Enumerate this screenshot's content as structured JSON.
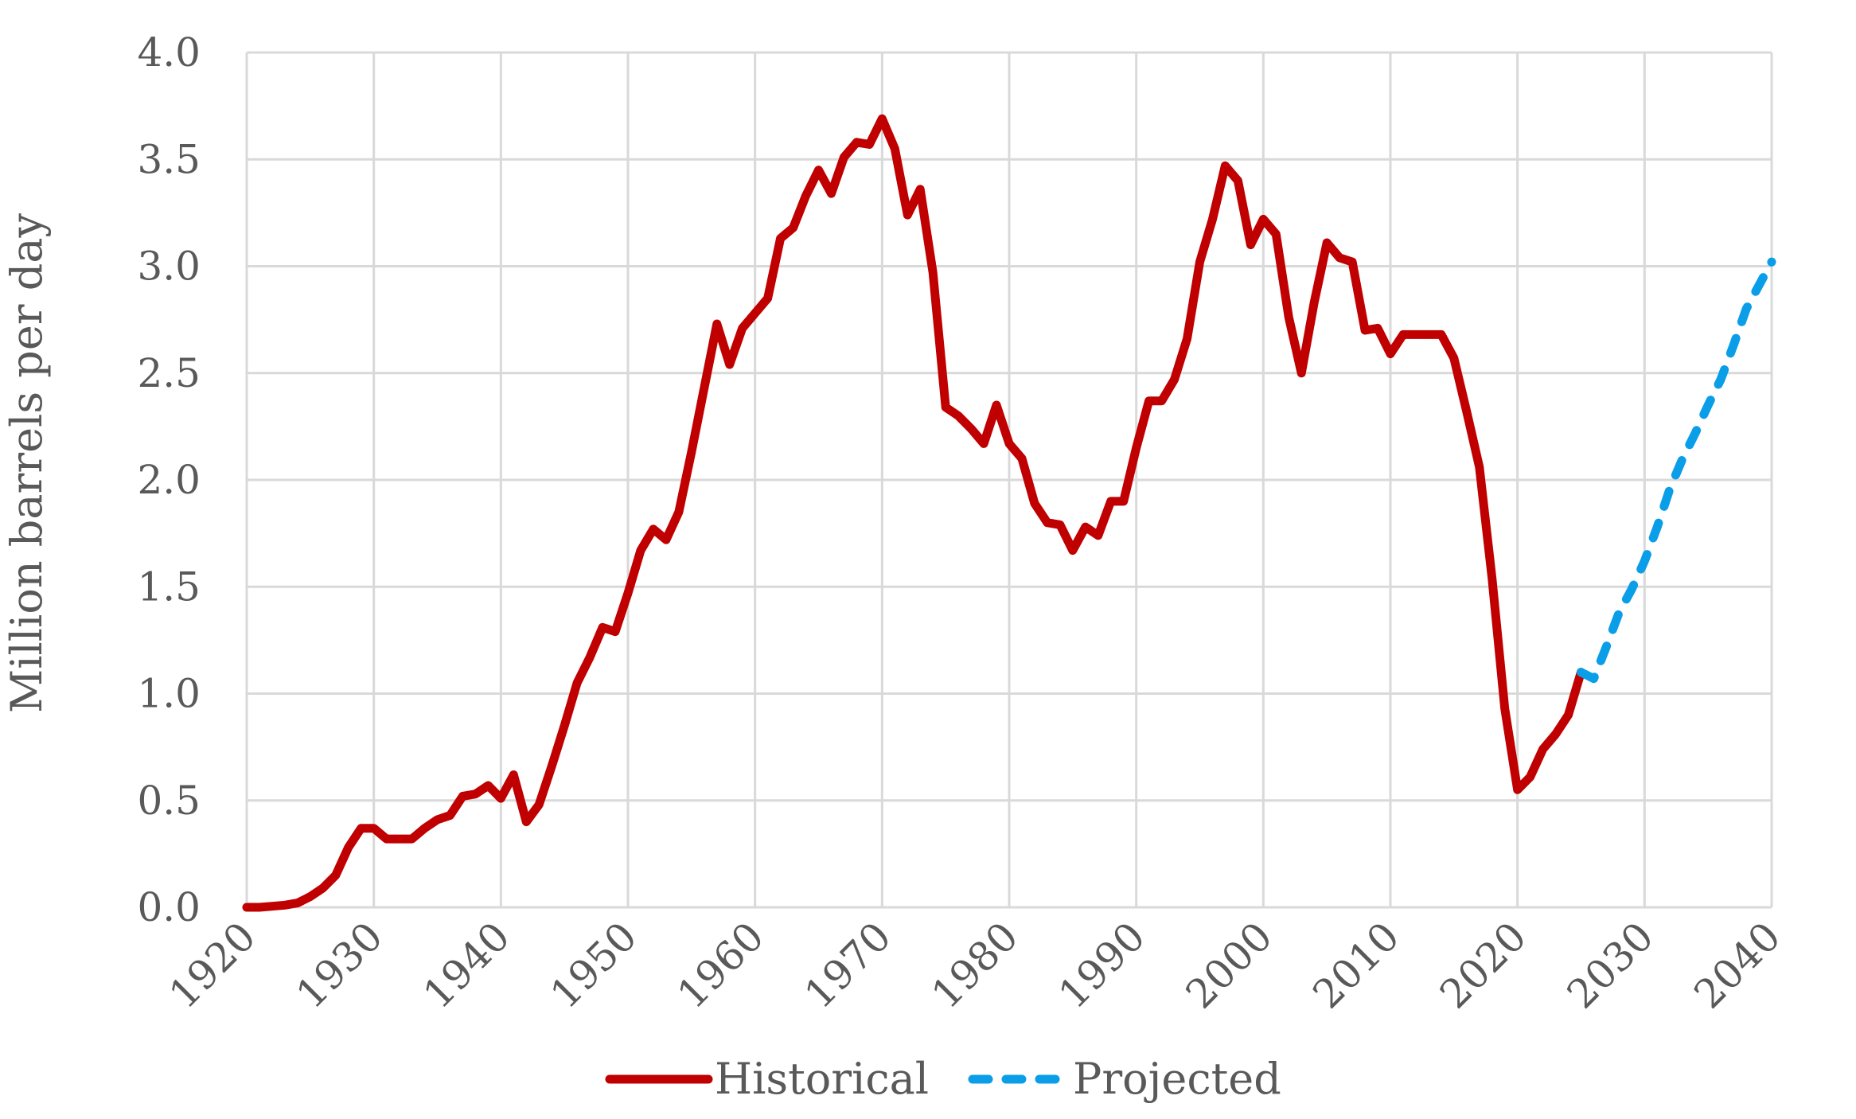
{
  "chart_data": {
    "type": "line",
    "title": "",
    "xlabel": "",
    "ylabel": "Million barrels per day",
    "xlim": [
      1920,
      2040
    ],
    "ylim": [
      0,
      4
    ],
    "x_ticks": [
      "1920",
      "1930",
      "1940",
      "1950",
      "1960",
      "1970",
      "1980",
      "1990",
      "2000",
      "2010",
      "2020",
      "2030",
      "2040"
    ],
    "y_ticks": [
      "0.0",
      "0.5",
      "1.0",
      "1.5",
      "2.0",
      "2.5",
      "3.0",
      "3.5",
      "4.0"
    ],
    "grid": true,
    "legend_position": "bottom",
    "series": [
      {
        "name": "Historical",
        "color": "#c00000",
        "style": "solid",
        "x": [
          1920,
          1921,
          1922,
          1923,
          1924,
          1925,
          1926,
          1927,
          1928,
          1929,
          1930,
          1931,
          1932,
          1933,
          1934,
          1935,
          1936,
          1937,
          1938,
          1939,
          1940,
          1941,
          1942,
          1943,
          1944,
          1945,
          1946,
          1947,
          1948,
          1949,
          1950,
          1951,
          1952,
          1953,
          1954,
          1955,
          1956,
          1957,
          1958,
          1959,
          1960,
          1961,
          1962,
          1963,
          1964,
          1965,
          1966,
          1967,
          1968,
          1969,
          1970,
          1971,
          1972,
          1973,
          1974,
          1975,
          1976,
          1977,
          1978,
          1979,
          1980,
          1981,
          1982,
          1983,
          1984,
          1985,
          1986,
          1987,
          1988,
          1989,
          1990,
          1991,
          1992,
          1993,
          1994,
          1995,
          1996,
          1997,
          1998,
          1999,
          2000,
          2001,
          2002,
          2003,
          2004,
          2005,
          2006,
          2007,
          2008,
          2009,
          2010,
          2011,
          2012,
          2013,
          2014,
          2015,
          2016,
          2017,
          2018,
          2019,
          2020,
          2021,
          2022,
          2023,
          2024,
          2025
        ],
        "values": [
          0.0,
          0.0,
          0.005,
          0.01,
          0.02,
          0.05,
          0.09,
          0.15,
          0.28,
          0.37,
          0.37,
          0.32,
          0.32,
          0.32,
          0.37,
          0.41,
          0.43,
          0.52,
          0.53,
          0.57,
          0.51,
          0.62,
          0.4,
          0.48,
          0.66,
          0.85,
          1.05,
          1.17,
          1.31,
          1.29,
          1.47,
          1.67,
          1.77,
          1.72,
          1.85,
          2.13,
          2.43,
          2.73,
          2.54,
          2.71,
          2.78,
          2.85,
          3.13,
          3.18,
          3.33,
          3.45,
          3.34,
          3.51,
          3.58,
          3.57,
          3.69,
          3.55,
          3.24,
          3.36,
          2.97,
          2.34,
          2.3,
          2.24,
          2.17,
          2.35,
          2.17,
          2.1,
          1.89,
          1.8,
          1.79,
          1.67,
          1.78,
          1.74,
          1.9,
          1.9,
          2.15,
          2.37,
          2.37,
          2.47,
          2.66,
          3.02,
          3.22,
          3.47,
          3.4,
          3.1,
          3.22,
          3.15,
          2.76,
          2.5,
          2.83,
          3.11,
          3.04,
          3.02,
          2.7,
          2.71,
          2.59,
          2.68,
          2.68,
          2.68,
          2.68,
          2.57,
          2.32,
          2.06,
          1.54,
          0.93,
          0.55,
          0.61,
          0.74,
          0.81,
          0.9,
          1.1
        ]
      },
      {
        "name": "Projected",
        "color": "#0b9ee8",
        "style": "dashed",
        "x": [
          2025,
          2026,
          2027,
          2028,
          2029,
          2030,
          2031,
          2032,
          2033,
          2034,
          2035,
          2036,
          2037,
          2038,
          2039,
          2040
        ],
        "values": [
          1.1,
          1.07,
          1.22,
          1.38,
          1.49,
          1.62,
          1.78,
          1.96,
          2.1,
          2.22,
          2.35,
          2.47,
          2.63,
          2.8,
          2.91,
          3.02
        ]
      }
    ]
  }
}
